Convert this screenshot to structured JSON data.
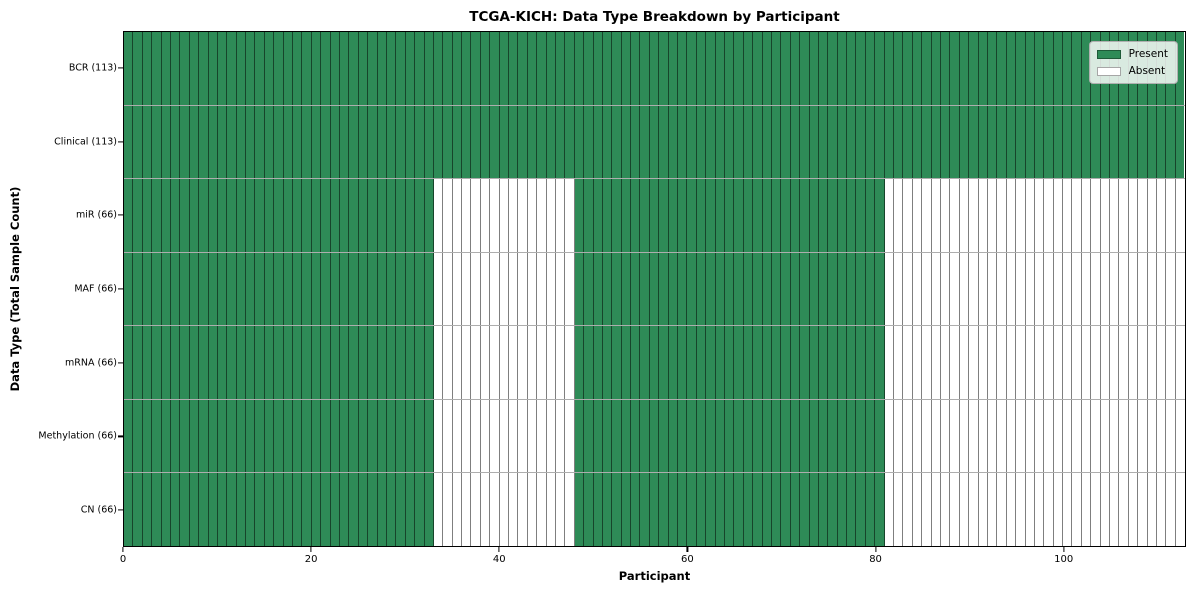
{
  "chart_data": {
    "type": "heatmap",
    "title": "TCGA-KICH: Data Type Breakdown by Participant",
    "xlabel": "Participant",
    "ylabel": "Data Type (Total Sample Count)",
    "xlim": [
      0,
      113
    ],
    "n_participants": 113,
    "x_ticks": [
      0,
      20,
      40,
      60,
      80,
      100
    ],
    "grid": "cell-borders",
    "legend_position": "upper right",
    "colors": {
      "present": "#2e8b57",
      "absent": "#ffffff",
      "cell_border": "rgba(0,0,0,0.5)"
    },
    "legend_items": [
      {
        "label": "Present",
        "color": "#2e8b57"
      },
      {
        "label": "Absent",
        "color": "#ffffff"
      }
    ],
    "rows": [
      {
        "label": "BCR (113)",
        "name": "BCR",
        "total_samples": 113,
        "present_ranges": [
          [
            0,
            113
          ]
        ]
      },
      {
        "label": "Clinical (113)",
        "name": "Clinical",
        "total_samples": 113,
        "present_ranges": [
          [
            0,
            113
          ]
        ]
      },
      {
        "label": "miR (66)",
        "name": "miR",
        "total_samples": 66,
        "present_ranges": [
          [
            0,
            33
          ],
          [
            48,
            81
          ]
        ]
      },
      {
        "label": "MAF (66)",
        "name": "MAF",
        "total_samples": 66,
        "present_ranges": [
          [
            0,
            33
          ],
          [
            48,
            81
          ]
        ]
      },
      {
        "label": "mRNA (66)",
        "name": "mRNA",
        "total_samples": 66,
        "present_ranges": [
          [
            0,
            33
          ],
          [
            48,
            81
          ]
        ]
      },
      {
        "label": "Methylation (66)",
        "name": "Methylation",
        "total_samples": 66,
        "present_ranges": [
          [
            0,
            33
          ],
          [
            48,
            81
          ]
        ]
      },
      {
        "label": "CN (66)",
        "name": "CN",
        "total_samples": 66,
        "present_ranges": [
          [
            0,
            33
          ],
          [
            48,
            81
          ]
        ]
      }
    ]
  }
}
